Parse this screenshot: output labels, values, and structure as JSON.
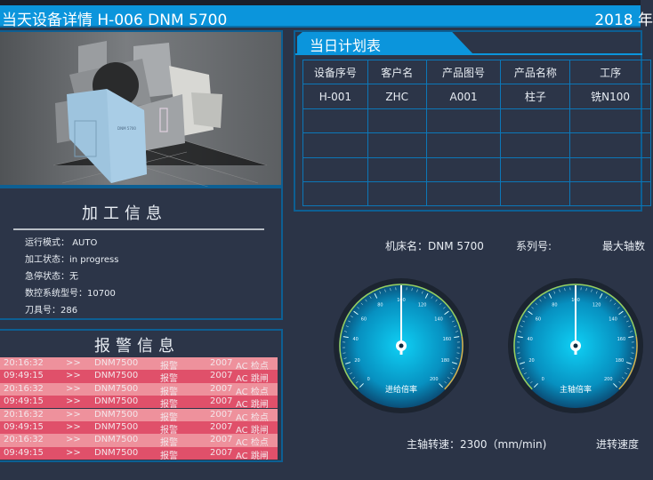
{
  "header": {
    "title": "当天设备详情  H-006   DNM 5700",
    "date": "2018 年"
  },
  "machine_image": {
    "label": "DNM 5700"
  },
  "processing": {
    "title": "加工信息",
    "rows": [
      {
        "label": "运行模式：",
        "value": "AUTO"
      },
      {
        "label": "加工状态：",
        "value": "in progress"
      },
      {
        "label": "急停状态：",
        "value": "无"
      },
      {
        "label": "数控系统型号：",
        "value": "10700"
      },
      {
        "label": "刀具号：",
        "value": "286"
      }
    ]
  },
  "alarms": {
    "title": "报警信息",
    "rows": [
      {
        "time": "20:16:32",
        "arrow": ">>",
        "machine": "DNM7500",
        "type": "报警",
        "code": "2007",
        "msg": "AC 检点"
      },
      {
        "time": "09:49:15",
        "arrow": ">>",
        "machine": "DNM7500",
        "type": "报警",
        "code": "2007",
        "msg": "AC 跳闸"
      },
      {
        "time": "20:16:32",
        "arrow": ">>",
        "machine": "DNM7500",
        "type": "报警",
        "code": "2007",
        "msg": "AC 检点"
      },
      {
        "time": "09:49:15",
        "arrow": ">>",
        "machine": "DNM7500",
        "type": "报警",
        "code": "2007",
        "msg": "AC 跳闸"
      },
      {
        "time": "20:16:32",
        "arrow": ">>",
        "machine": "DNM7500",
        "type": "报警",
        "code": "2007",
        "msg": "AC 检点"
      },
      {
        "time": "09:49:15",
        "arrow": ">>",
        "machine": "DNM7500",
        "type": "报警",
        "code": "2007",
        "msg": "AC 跳闸"
      },
      {
        "time": "20:16:32",
        "arrow": ">>",
        "machine": "DNM7500",
        "type": "报警",
        "code": "2007",
        "msg": "AC 检点"
      },
      {
        "time": "09:49:15",
        "arrow": ">>",
        "machine": "DNM7500",
        "type": "报警",
        "code": "2007",
        "msg": "AC 跳闸"
      }
    ]
  },
  "plan": {
    "title": "当日计划表",
    "columns": [
      "设备序号",
      "客户名",
      "产品图号",
      "产品名称",
      "工序"
    ],
    "rows": [
      [
        "H-001",
        "ZHC",
        "A001",
        "柱子",
        "铣N100"
      ],
      [
        "",
        "",
        "",
        "",
        ""
      ],
      [
        "",
        "",
        "",
        "",
        ""
      ],
      [
        "",
        "",
        "",
        "",
        ""
      ],
      [
        "",
        "",
        "",
        "",
        ""
      ]
    ]
  },
  "machine_info": {
    "name": "机床名：DNM 5700",
    "series": "系列号:",
    "max_axis": "最大轴数"
  },
  "gauges": [
    {
      "label": "进给倍率",
      "value": 100,
      "min": 0,
      "max": 200,
      "ticks": [
        "0",
        "20",
        "40",
        "60",
        "80",
        "100",
        "120",
        "140",
        "160",
        "180",
        "200"
      ]
    },
    {
      "label": "主轴倍率",
      "value": 100,
      "min": 0,
      "max": 200,
      "ticks": [
        "0",
        "20",
        "40",
        "60",
        "80",
        "100",
        "120",
        "140",
        "160",
        "180",
        "200"
      ]
    }
  ],
  "speeds": {
    "spindle": "主轴转速：2300（mm/min)",
    "feed": "进转速度"
  },
  "colors": {
    "accent": "#0b95dc",
    "alarm_light": "#ee919c",
    "alarm_dark": "#e0506a"
  }
}
